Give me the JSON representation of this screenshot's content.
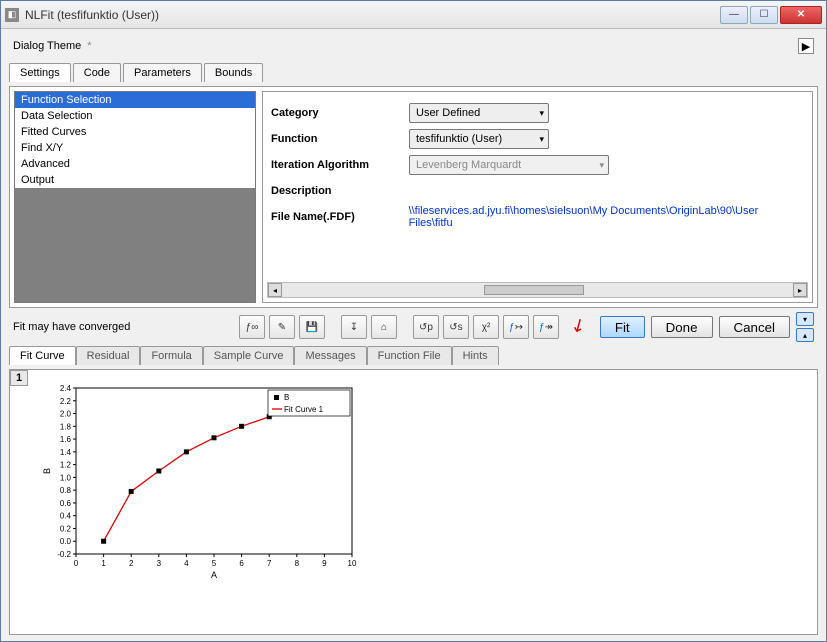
{
  "window": {
    "title": "NLFit (tesfifunktio (User))"
  },
  "dialog_theme": {
    "label": "Dialog Theme",
    "value": "*"
  },
  "tabs": {
    "items": [
      "Settings",
      "Code",
      "Parameters",
      "Bounds"
    ],
    "active": 0
  },
  "sidebar": {
    "items": [
      "Function Selection",
      "Data Selection",
      "Fitted Curves",
      "Find X/Y",
      "Advanced",
      "Output"
    ],
    "selected": 0
  },
  "props": {
    "category_label": "Category",
    "category_value": "User Defined",
    "function_label": "Function",
    "function_value": "tesfifunktio (User)",
    "algorithm_label": "Iteration Algorithm",
    "algorithm_value": "Levenberg Marquardt",
    "description_label": "Description",
    "filename_label": "File Name(.FDF)",
    "filename_value": "\\\\fileservices.ad.jyu.fi\\homes\\sielsuon\\My Documents\\OriginLab\\90\\User Files\\fitfu"
  },
  "status": "Fit may have converged",
  "action": {
    "fit": "Fit",
    "done": "Done",
    "cancel": "Cancel"
  },
  "tabs2": {
    "items": [
      "Fit Curve",
      "Residual",
      "Formula",
      "Sample Curve",
      "Messages",
      "Function File",
      "Hints"
    ],
    "active": 0
  },
  "chart_badge": "1",
  "chart": {
    "type": "scatter+line",
    "x_label": "A",
    "y_label": "B",
    "legend_scatter": "B",
    "legend_line": "Fit Curve 1",
    "xlim": [
      0,
      10
    ],
    "ylim": [
      -0.2,
      2.4
    ],
    "xtick_step": 1,
    "ytick_step": 0.2,
    "scatter_points": [
      [
        1,
        0.0
      ],
      [
        2,
        0.78
      ],
      [
        3,
        1.1
      ],
      [
        4,
        1.4
      ],
      [
        5,
        1.62
      ],
      [
        6,
        1.8
      ],
      [
        7,
        1.95
      ],
      [
        8,
        2.08
      ],
      [
        9,
        2.2
      ]
    ],
    "line_color": "#e00000",
    "marker_fill": "#000000",
    "axis_color": "#000000",
    "grid_color": "#ffffff",
    "bg_color": "#ffffff",
    "axis_fontsize": 8,
    "label_fontsize": 9
  }
}
